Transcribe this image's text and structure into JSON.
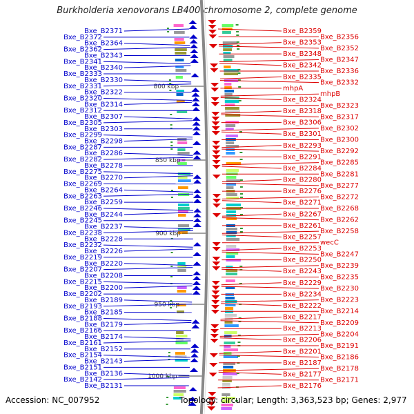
{
  "title": "Burkholderia xenovorans LB400 chromosome 2, complete genome",
  "footer": {
    "accession": "Accession: NC_007952",
    "topology": "Topology: circular; Length: 3,363,523 bp; Genes: 2,977"
  },
  "colors": {
    "forward_strand": "#0000cc",
    "reverse_strand": "#dd0000",
    "backbone": "#888888",
    "text": "#222222"
  },
  "scale_ticks": [
    "800 kbp",
    "850 kbp",
    "900 kbp",
    "950 kbp",
    "1000 kbp"
  ],
  "left_labels": [
    [
      "Bxe_B2371"
    ],
    [
      "Bxe_B2372"
    ],
    [
      "Bxe_B2364"
    ],
    [
      "Bxe_B2362"
    ],
    [
      "Bxe_B2343"
    ],
    [
      "Bxe_B2341"
    ],
    [
      "Bxe_B2340"
    ],
    [
      "Bxe_B2333"
    ],
    [
      "Bxe_B2330"
    ],
    [
      "Bxe_B2331"
    ],
    [
      "Bxe_B2322"
    ],
    [
      "Bxe_B2320"
    ],
    [
      "Bxe_B2314"
    ],
    [
      "Bxe_B2312"
    ],
    [
      "Bxe_B2307"
    ],
    [
      "Bxe_B2305"
    ],
    [
      "Bxe_B2303"
    ],
    [
      "Bxe_B2299"
    ],
    [
      "Bxe_B2298"
    ],
    [
      "Bxe_B2287"
    ],
    [
      "Bxe_B2286"
    ],
    [
      "Bxe_B2282"
    ],
    [
      "Bxe_B2278"
    ],
    [
      "Bxe_B2275"
    ],
    [
      "Bxe_B2270"
    ],
    [
      "Bxe_B2269"
    ],
    [
      "Bxe_B2264"
    ],
    [
      "Bxe_B2263"
    ],
    [
      "Bxe_B2259"
    ],
    [
      "Bxe_B2246"
    ],
    [
      "Bxe_B2244"
    ],
    [
      "Bxe_B2245"
    ],
    [
      "Bxe_B2237"
    ],
    [
      "Bxe_B2238"
    ],
    [
      "Bxe_B2228"
    ],
    [
      "Bxe_B2232"
    ],
    [
      "Bxe_B2226"
    ],
    [
      "Bxe_B2219"
    ],
    [
      "Bxe_B2220"
    ],
    [
      "Bxe_B2207"
    ],
    [
      "Bxe_B2208"
    ],
    [
      "Bxe_B2215"
    ],
    [
      "Bxe_B2200"
    ],
    [
      "Bxe_B2202"
    ],
    [
      "Bxe_B2189"
    ],
    [
      "Bxe_B2193"
    ],
    [
      "Bxe_B2185"
    ],
    [
      "Bxe_B2188"
    ],
    [
      "Bxe_B2179"
    ],
    [
      "Bxe_B2166"
    ],
    [
      "Bxe_B2174"
    ],
    [
      "Bxe_B2161"
    ],
    [
      "Bxe_B2152"
    ],
    [
      "Bxe_B2154"
    ],
    [
      "Bxe_B2143"
    ],
    [
      "Bxe_B2151"
    ],
    [
      "Bxe_B2136"
    ],
    [
      "Bxe_B2142"
    ],
    [
      "Bxe_B2131"
    ]
  ],
  "right_labels": [
    [
      "Bxe_B2359"
    ],
    [
      "Bxe_B2356"
    ],
    [
      "Bxe_B2353"
    ],
    [
      "Bxe_B2352"
    ],
    [
      "Bxe_B2348"
    ],
    [
      "Bxe_B2347"
    ],
    [
      "Bxe_B2342"
    ],
    [
      "Bxe_B2336"
    ],
    [
      "Bxe_B2335"
    ],
    [
      "Bxe_B2332"
    ],
    [
      "mhpA"
    ],
    [
      "mhpB"
    ],
    [
      "Bxe_B2324"
    ],
    [
      "Bxe_B2323"
    ],
    [
      "Bxe_B2318"
    ],
    [
      "Bxe_B2317"
    ],
    [
      "Bxe_B2306"
    ],
    [
      "Bxe_B2302"
    ],
    [
      "Bxe_B2301"
    ],
    [
      "Bxe_B2300"
    ],
    [
      "Bxe_B2293"
    ],
    [
      "Bxe_B2292"
    ],
    [
      "Bxe_B2291"
    ],
    [
      "Bxe_B2285"
    ],
    [
      "Bxe_B2284"
    ],
    [
      "Bxe_B2281"
    ],
    [
      "Bxe_B2280"
    ],
    [
      "Bxe_B2277"
    ],
    [
      "Bxe_B2276"
    ],
    [
      "Bxe_B2272"
    ],
    [
      "Bxe_B2271"
    ],
    [
      "Bxe_B2268"
    ],
    [
      "Bxe_B2267"
    ],
    [
      "Bxe_B2262"
    ],
    [
      "Bxe_B2261"
    ],
    [
      "Bxe_B2258"
    ],
    [
      "Bxe_B2257"
    ],
    [
      "wecC"
    ],
    [
      "Bxe_B2253"
    ],
    [
      "Bxe_B2247"
    ],
    [
      "Bxe_B2250"
    ],
    [
      "Bxe_B2239"
    ],
    [
      "Bxe_B2243"
    ],
    [
      "Bxe_B2235"
    ],
    [
      "Bxe_B2229"
    ],
    [
      "Bxe_B2230"
    ],
    [
      "Bxe_B2234"
    ],
    [
      "Bxe_B2223"
    ],
    [
      "Bxe_B2222"
    ],
    [
      "Bxe_B2214"
    ],
    [
      "Bxe_B2217"
    ],
    [
      "Bxe_B2209"
    ],
    [
      "Bxe_B2213"
    ],
    [
      "Bxe_B2204"
    ],
    [
      "Bxe_B2206"
    ],
    [
      "Bxe_B2191"
    ],
    [
      "Bxe_B2201"
    ],
    [
      "Bxe_B2186"
    ],
    [
      "Bxe_B2187"
    ],
    [
      "Bxe_B2178"
    ],
    [
      "Bxe_B2177"
    ],
    [
      "Bxe_B2171"
    ],
    [
      "Bxe_B2176"
    ]
  ]
}
